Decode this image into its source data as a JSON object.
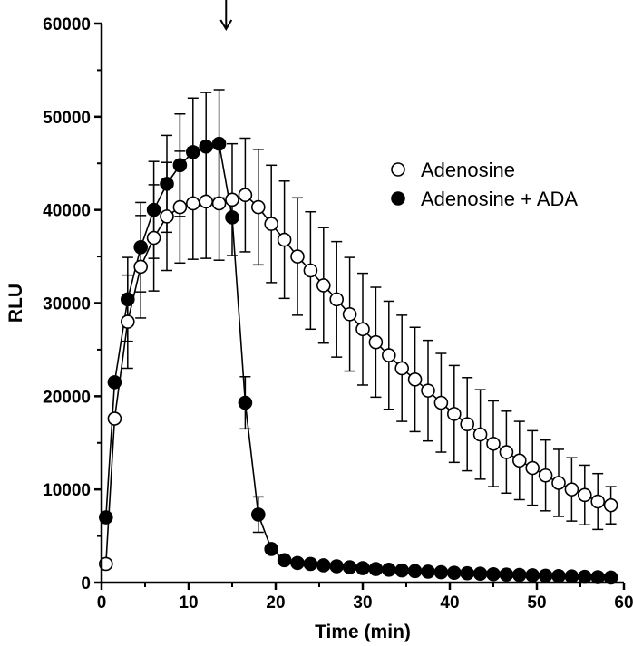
{
  "chart_data": {
    "type": "scatter",
    "xlabel": "Time (min)",
    "ylabel": "RLU",
    "xlim": [
      0,
      60
    ],
    "ylim": [
      0,
      60000
    ],
    "xticks": [
      0,
      10,
      20,
      30,
      40,
      50,
      60
    ],
    "yticks": [
      0,
      10000,
      20000,
      30000,
      40000,
      50000,
      60000
    ],
    "xtick_labels": [
      "0",
      "10",
      "20",
      "30",
      "40",
      "50",
      "60"
    ],
    "ytick_labels": [
      "0",
      "10000",
      "20000",
      "30000",
      "40000",
      "50000",
      "60000"
    ],
    "annotation_arrow_x": 14.3,
    "legend_position": "right",
    "grid": false,
    "series": [
      {
        "name": "Adenosine",
        "marker": "open-circle",
        "points": [
          [
            0.5,
            2000,
            0
          ],
          [
            1.5,
            17600,
            0
          ],
          [
            3,
            28000,
            5000
          ],
          [
            4.5,
            33900,
            5500
          ],
          [
            6,
            37000,
            5700
          ],
          [
            7.5,
            39300,
            5800
          ],
          [
            9,
            40300,
            6000
          ],
          [
            10.5,
            40700,
            6000
          ],
          [
            12,
            40900,
            6100
          ],
          [
            13.5,
            40700,
            6100
          ],
          [
            15,
            41100,
            6000
          ],
          [
            16.5,
            41600,
            6100
          ],
          [
            18,
            40300,
            6200
          ],
          [
            19.5,
            38500,
            6300
          ],
          [
            21,
            36800,
            6300
          ],
          [
            22.5,
            35000,
            6300
          ],
          [
            24,
            33500,
            6300
          ],
          [
            25.5,
            31900,
            6200
          ],
          [
            27,
            30400,
            6200
          ],
          [
            28.5,
            28800,
            6100
          ],
          [
            30,
            27200,
            6000
          ],
          [
            31.5,
            25800,
            5900
          ],
          [
            33,
            24400,
            5800
          ],
          [
            34.5,
            23000,
            5700
          ],
          [
            36,
            21800,
            5600
          ],
          [
            37.5,
            20600,
            5400
          ],
          [
            39,
            19300,
            5300
          ],
          [
            40.5,
            18100,
            5200
          ],
          [
            42,
            17000,
            5000
          ],
          [
            43.5,
            15900,
            4800
          ],
          [
            45,
            14900,
            4600
          ],
          [
            46.5,
            14000,
            4400
          ],
          [
            48,
            13100,
            4200
          ],
          [
            49.5,
            12300,
            4000
          ],
          [
            51,
            11500,
            3800
          ],
          [
            52.5,
            10700,
            3600
          ],
          [
            54,
            10000,
            3400
          ],
          [
            55.5,
            9400,
            3200
          ],
          [
            57,
            8700,
            3000
          ],
          [
            58.5,
            8300,
            2000
          ]
        ]
      },
      {
        "name": "Adenosine + ADA",
        "marker": "filled-circle",
        "points": [
          [
            0.5,
            7000,
            0
          ],
          [
            1.5,
            21500,
            0
          ],
          [
            3,
            30400,
            4500
          ],
          [
            4.5,
            36000,
            4800
          ],
          [
            6,
            40000,
            5200
          ],
          [
            7.5,
            42800,
            5200
          ],
          [
            9,
            44800,
            5500
          ],
          [
            10.5,
            46200,
            5800
          ],
          [
            12,
            46800,
            5800
          ],
          [
            13.5,
            47100,
            5800
          ],
          [
            15,
            39200,
            0
          ],
          [
            16.5,
            19300,
            2800
          ],
          [
            18,
            7300,
            1900
          ],
          [
            19.5,
            3600,
            0
          ],
          [
            21,
            2400,
            0
          ],
          [
            22.5,
            2100,
            0
          ],
          [
            24,
            2000,
            0
          ],
          [
            25.5,
            1850,
            0
          ],
          [
            27,
            1750,
            0
          ],
          [
            28.5,
            1650,
            0
          ],
          [
            30,
            1550,
            0
          ],
          [
            31.5,
            1450,
            0
          ],
          [
            33,
            1380,
            0
          ],
          [
            34.5,
            1300,
            0
          ],
          [
            36,
            1230,
            0
          ],
          [
            37.5,
            1170,
            0
          ],
          [
            39,
            1110,
            0
          ],
          [
            40.5,
            1050,
            0
          ],
          [
            42,
            1000,
            0
          ],
          [
            43.5,
            950,
            0
          ],
          [
            45,
            900,
            0
          ],
          [
            46.5,
            860,
            0
          ],
          [
            48,
            820,
            0
          ],
          [
            49.5,
            780,
            0
          ],
          [
            51,
            740,
            0
          ],
          [
            52.5,
            700,
            0
          ],
          [
            54,
            660,
            0
          ],
          [
            55.5,
            620,
            0
          ],
          [
            57,
            580,
            0
          ],
          [
            58.5,
            540,
            0
          ]
        ]
      }
    ]
  }
}
